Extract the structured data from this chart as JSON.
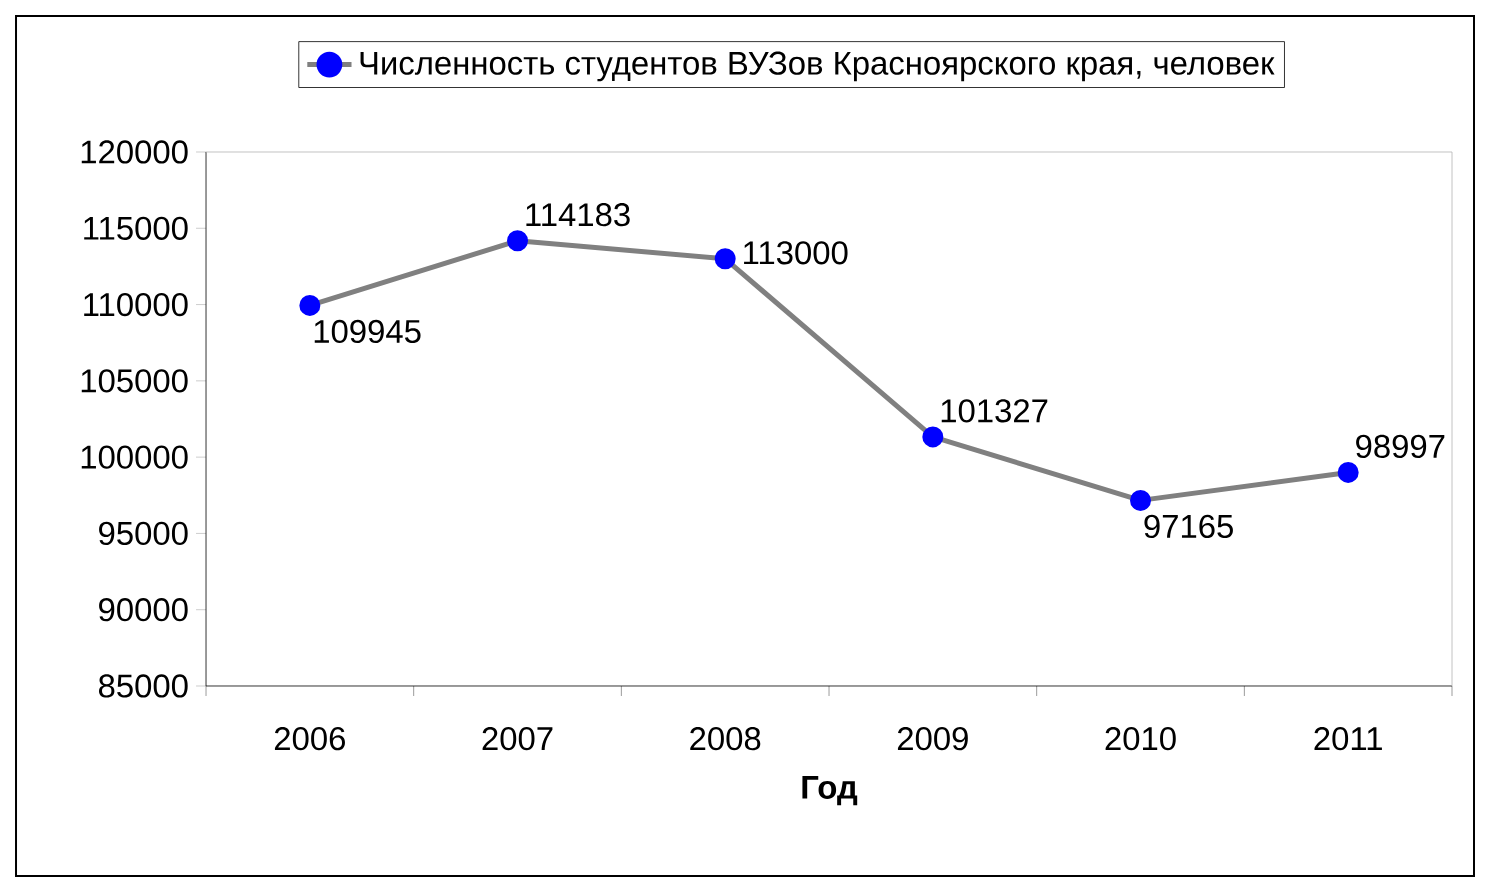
{
  "chart_data": {
    "type": "line",
    "xlabel": "Год",
    "categories": [
      "2006",
      "2007",
      "2008",
      "2009",
      "2010",
      "2011"
    ],
    "series": [
      {
        "name": "Численность студентов ВУЗов Красноярского края, человек",
        "color": "#808080",
        "values": [
          109945,
          114183,
          113000,
          101327,
          97165,
          98997
        ]
      }
    ],
    "marker": "circle",
    "line_style": "solid",
    "ylim": [
      85000,
      120000
    ],
    "yticks": [
      85000,
      90000,
      95000,
      100000,
      105000,
      110000,
      115000,
      120000
    ],
    "grid": false,
    "legend": "top",
    "data_labels": true
  }
}
